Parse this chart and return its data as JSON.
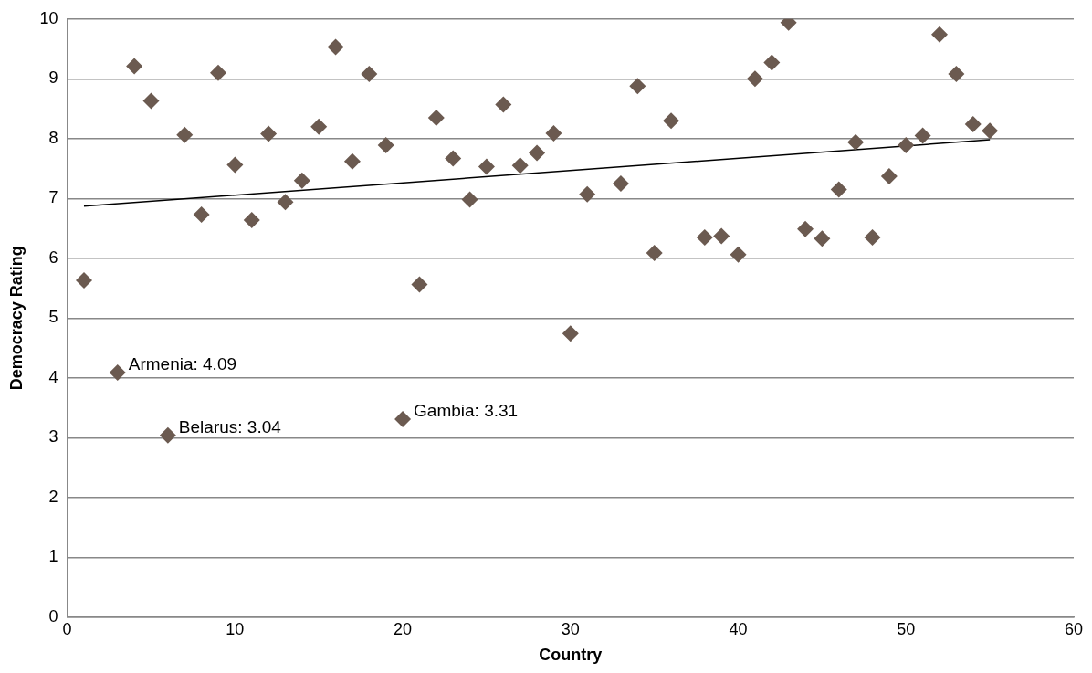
{
  "chart_data": {
    "type": "scatter",
    "xlabel": "Country",
    "ylabel": "Democracy Rating",
    "xlim": [
      0,
      60
    ],
    "xticks": [
      0,
      10,
      20,
      30,
      40,
      50,
      60
    ],
    "ylim": [
      0,
      10
    ],
    "yticks": [
      0,
      1,
      2,
      3,
      4,
      5,
      6,
      7,
      8,
      9,
      10
    ],
    "grid": "y",
    "legend": false,
    "marker": "diamond",
    "series": [
      {
        "color": "#6b5a50",
        "x": [
          1,
          3,
          4,
          5,
          6,
          7,
          8,
          9,
          10,
          11,
          12,
          13,
          14,
          15,
          16,
          17,
          18,
          19,
          20,
          21,
          22,
          23,
          24,
          25,
          26,
          27,
          28,
          29,
          30,
          31,
          33,
          34,
          35,
          36,
          38,
          39,
          40,
          41,
          42,
          43,
          44,
          45,
          46,
          47,
          48,
          49,
          50,
          51,
          52,
          53,
          54,
          55
        ],
        "values": [
          5.63,
          4.09,
          9.21,
          8.63,
          3.04,
          8.06,
          6.73,
          9.1,
          7.56,
          6.64,
          8.08,
          6.94,
          7.3,
          8.2,
          9.53,
          7.62,
          9.08,
          7.89,
          3.31,
          5.56,
          8.35,
          7.67,
          6.98,
          7.53,
          8.57,
          7.55,
          7.76,
          8.09,
          4.74,
          7.07,
          7.25,
          8.88,
          6.09,
          8.3,
          6.35,
          6.37,
          6.06,
          9.0,
          9.27,
          9.94,
          6.49,
          6.33,
          7.15,
          7.94,
          6.35,
          7.37,
          7.89,
          8.05,
          9.74,
          9.08,
          8.24,
          8.13
        ]
      },
      {
        "type": "line",
        "color": "#000000",
        "marker": "none",
        "x": [
          1,
          55
        ],
        "values": [
          6.87,
          7.98
        ]
      }
    ],
    "annotations": [
      {
        "text": "Armenia: 4.09",
        "x": 3,
        "y": 4.09
      },
      {
        "text": "Belarus: 3.04",
        "x": 6,
        "y": 3.04
      },
      {
        "text": "Gambia: 3.31",
        "x": 20,
        "y": 3.31
      }
    ]
  }
}
